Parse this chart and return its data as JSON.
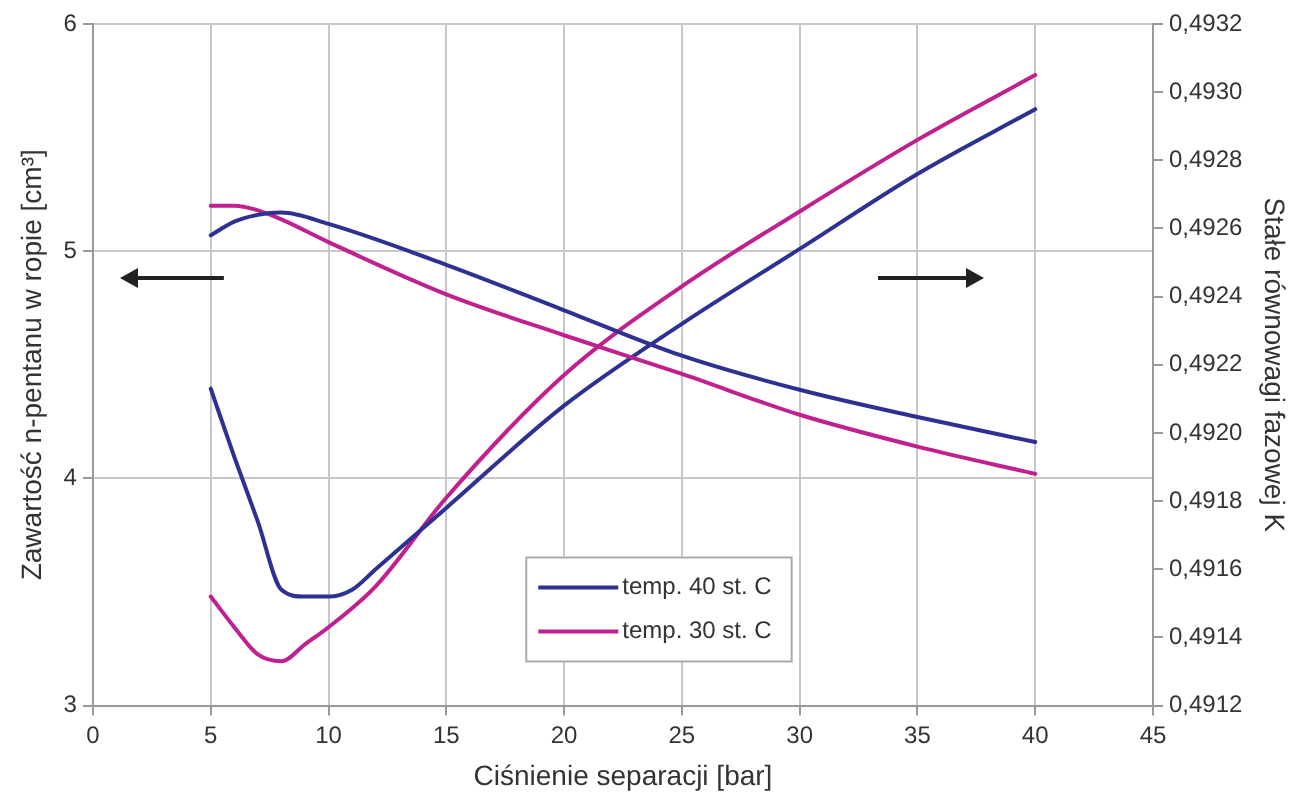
{
  "chart_data": {
    "type": "line",
    "xlabel": "Ciśnienie separacji [bar]",
    "ylabel": "Zawartość n-pentanu w ropie [cm³]",
    "y2label": "Stałe równowagi fazowej K",
    "xlim": [
      0,
      45
    ],
    "xticks": [
      0,
      5,
      10,
      15,
      20,
      25,
      30,
      35,
      40,
      45
    ],
    "ylim": [
      3,
      6
    ],
    "yticks": [
      3,
      4,
      5,
      6
    ],
    "y2lim": [
      0.4912,
      0.4932
    ],
    "y2ticks": [
      {
        "value": 0.4912,
        "label": "0,4912"
      },
      {
        "value": 0.4914,
        "label": "0,4914"
      },
      {
        "value": 0.4916,
        "label": "0,4916"
      },
      {
        "value": 0.4918,
        "label": "0,4918"
      },
      {
        "value": 0.492,
        "label": "0,4920"
      },
      {
        "value": 0.4922,
        "label": "0,4922"
      },
      {
        "value": 0.4924,
        "label": "0,4924"
      },
      {
        "value": 0.4926,
        "label": "0,4926"
      },
      {
        "value": 0.4928,
        "label": "0,4928"
      },
      {
        "value": 0.493,
        "label": "0,4930"
      },
      {
        "value": 0.4932,
        "label": "0,4932"
      }
    ],
    "grid": true,
    "legend": "bottom",
    "marker": "none",
    "line_style": "solid",
    "series": [
      {
        "name": "temp. 40 st. C",
        "color": "#2e3192",
        "x": [
          5,
          6,
          7,
          8,
          10,
          15,
          20,
          25,
          30,
          35,
          40
        ],
        "values": [
          5.07,
          5.13,
          5.16,
          5.17,
          5.12,
          4.94,
          4.74,
          4.54,
          4.39,
          4.27,
          4.16
        ]
      },
      {
        "name": "temp. 30 st. C",
        "color": "#c0218e",
        "x": [
          5,
          6,
          7,
          8,
          10,
          15,
          20,
          25,
          30,
          35,
          40
        ],
        "values": [
          5.2,
          5.2,
          5.18,
          5.14,
          5.04,
          4.81,
          4.63,
          4.46,
          4.28,
          4.14,
          4.02
        ]
      },
      {
        "color": "#2e3192",
        "axis": "y2",
        "x": [
          5,
          6,
          7,
          8,
          9,
          10,
          11,
          12,
          15,
          20,
          25,
          30,
          35,
          40
        ],
        "values": [
          0.49213,
          0.49193,
          0.49174,
          0.49154,
          0.49152,
          0.49152,
          0.49154,
          0.4916,
          0.49178,
          0.49208,
          0.49232,
          0.49254,
          0.49276,
          0.49295
        ]
      },
      {
        "color": "#c0218e",
        "axis": "y2",
        "x": [
          5,
          6,
          7,
          8,
          9,
          10,
          12,
          15,
          20,
          25,
          30,
          35,
          40
        ],
        "values": [
          0.49152,
          0.49143,
          0.49135,
          0.49133,
          0.49138,
          0.49143,
          0.49155,
          0.49181,
          0.49217,
          0.49243,
          0.49265,
          0.49286,
          0.49305
        ]
      }
    ]
  }
}
